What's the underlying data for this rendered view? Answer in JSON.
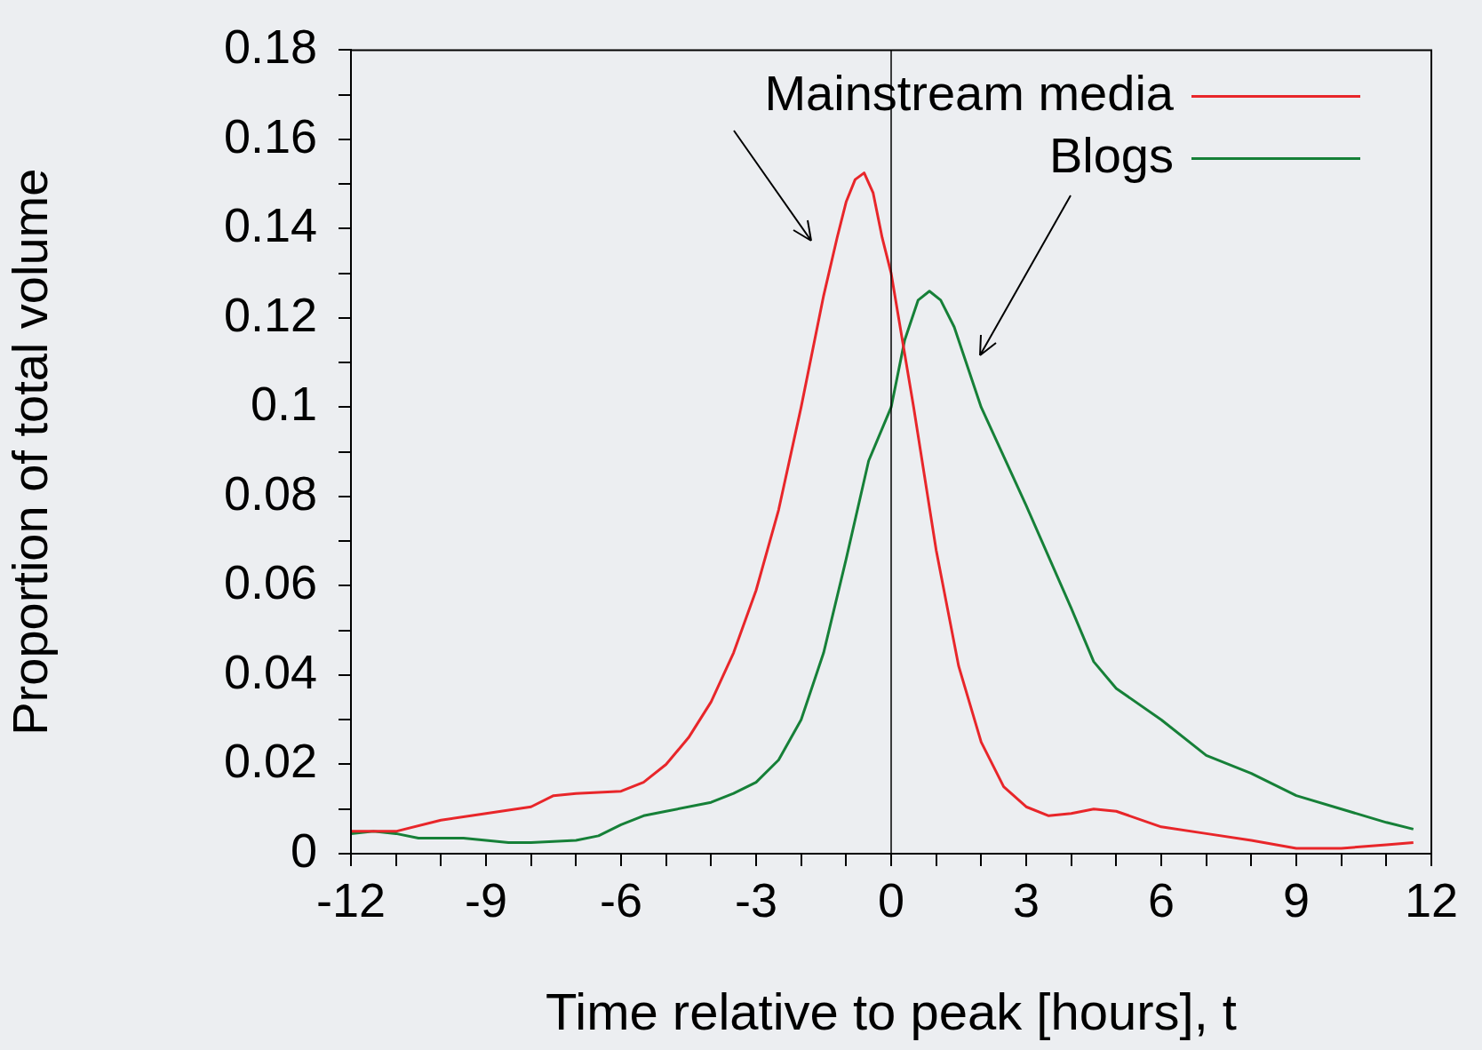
{
  "chart_data": {
    "type": "line",
    "xlabel": "Time relative to peak [hours], t",
    "ylabel": "Proportion of total volume",
    "xlim": [
      -12,
      12
    ],
    "ylim": [
      0,
      0.18
    ],
    "xticks": [
      -12,
      {
        "value": -11,
        "label": null
      },
      {
        "value": -10,
        "label": null
      },
      -9,
      {
        "value": -8,
        "label": null
      },
      {
        "value": -7,
        "label": null
      },
      -6,
      {
        "value": -5,
        "label": null
      },
      {
        "value": -4,
        "label": null
      },
      -3,
      {
        "value": -2,
        "label": null
      },
      {
        "value": -1,
        "label": null
      },
      0,
      {
        "value": 1,
        "label": null
      },
      {
        "value": 2,
        "label": null
      },
      3,
      {
        "value": 4,
        "label": null
      },
      {
        "value": 5,
        "label": null
      },
      6,
      {
        "value": 7,
        "label": null
      },
      {
        "value": 8,
        "label": null
      },
      9,
      {
        "value": 10,
        "label": null
      },
      {
        "value": 11,
        "label": null
      },
      12
    ],
    "yticks": [
      0,
      {
        "value": 0.01,
        "label": null
      },
      0.02,
      {
        "value": 0.03,
        "label": null
      },
      0.04,
      {
        "value": 0.05,
        "label": null
      },
      0.06,
      {
        "value": 0.07,
        "label": null
      },
      0.08,
      {
        "value": 0.09,
        "label": null
      },
      0.1,
      {
        "value": 0.11,
        "label": null
      },
      0.12,
      {
        "value": 0.13,
        "label": null
      },
      0.14,
      {
        "value": 0.15,
        "label": null
      },
      0.16,
      {
        "value": 0.17,
        "label": null
      },
      0.18
    ],
    "legend": "top right",
    "marker": "none",
    "line_style": "solid",
    "ref_lines": [
      {
        "axis": "x",
        "value": 0,
        "color": "#000000"
      }
    ],
    "series": [
      {
        "name": "Mainstream media",
        "color": "#e8262a",
        "x": [
          -12,
          -11,
          -10,
          -9,
          -8,
          -7.5,
          -7,
          -6,
          -5.5,
          -5,
          -4.5,
          -4,
          -3.5,
          -3,
          -2.5,
          -2,
          -1.5,
          -1.2,
          -1,
          -0.8,
          -0.6,
          -0.4,
          -0.2,
          0,
          0.5,
          1,
          1.5,
          2,
          2.5,
          3,
          3.5,
          4,
          4.5,
          5,
          6,
          7,
          8,
          9,
          10,
          11,
          11.6
        ],
        "values": [
          0.005,
          0.005,
          0.0075,
          0.009,
          0.0105,
          0.013,
          0.0135,
          0.014,
          0.016,
          0.02,
          0.026,
          0.034,
          0.045,
          0.059,
          0.077,
          0.1,
          0.125,
          0.138,
          0.146,
          0.151,
          0.1525,
          0.148,
          0.138,
          0.13,
          0.1,
          0.068,
          0.042,
          0.025,
          0.015,
          0.0105,
          0.0085,
          0.009,
          0.01,
          0.0095,
          0.006,
          0.0045,
          0.003,
          0.0012,
          0.0012,
          0.002,
          0.0025
        ]
      },
      {
        "name": "Blogs",
        "color": "#168038",
        "x": [
          -12,
          -11.5,
          -11,
          -10.5,
          -9.5,
          -8.5,
          -8,
          -7,
          -6.5,
          -6,
          -5.5,
          -5,
          -4,
          -3.5,
          -3,
          -2.5,
          -2,
          -1.5,
          -1,
          -0.5,
          0,
          0.3,
          0.6,
          0.85,
          1.1,
          1.4,
          2,
          3,
          4,
          4.5,
          5,
          6,
          7,
          8,
          9,
          10,
          11,
          11.6
        ],
        "values": [
          0.0045,
          0.005,
          0.0045,
          0.0035,
          0.0035,
          0.0025,
          0.0025,
          0.003,
          0.004,
          0.0065,
          0.0085,
          0.0095,
          0.0115,
          0.0135,
          0.016,
          0.021,
          0.03,
          0.045,
          0.066,
          0.088,
          0.1,
          0.115,
          0.124,
          0.126,
          0.124,
          0.118,
          0.1,
          0.078,
          0.055,
          0.043,
          0.037,
          0.03,
          0.022,
          0.018,
          0.013,
          0.01,
          0.007,
          0.0055
        ]
      }
    ]
  }
}
